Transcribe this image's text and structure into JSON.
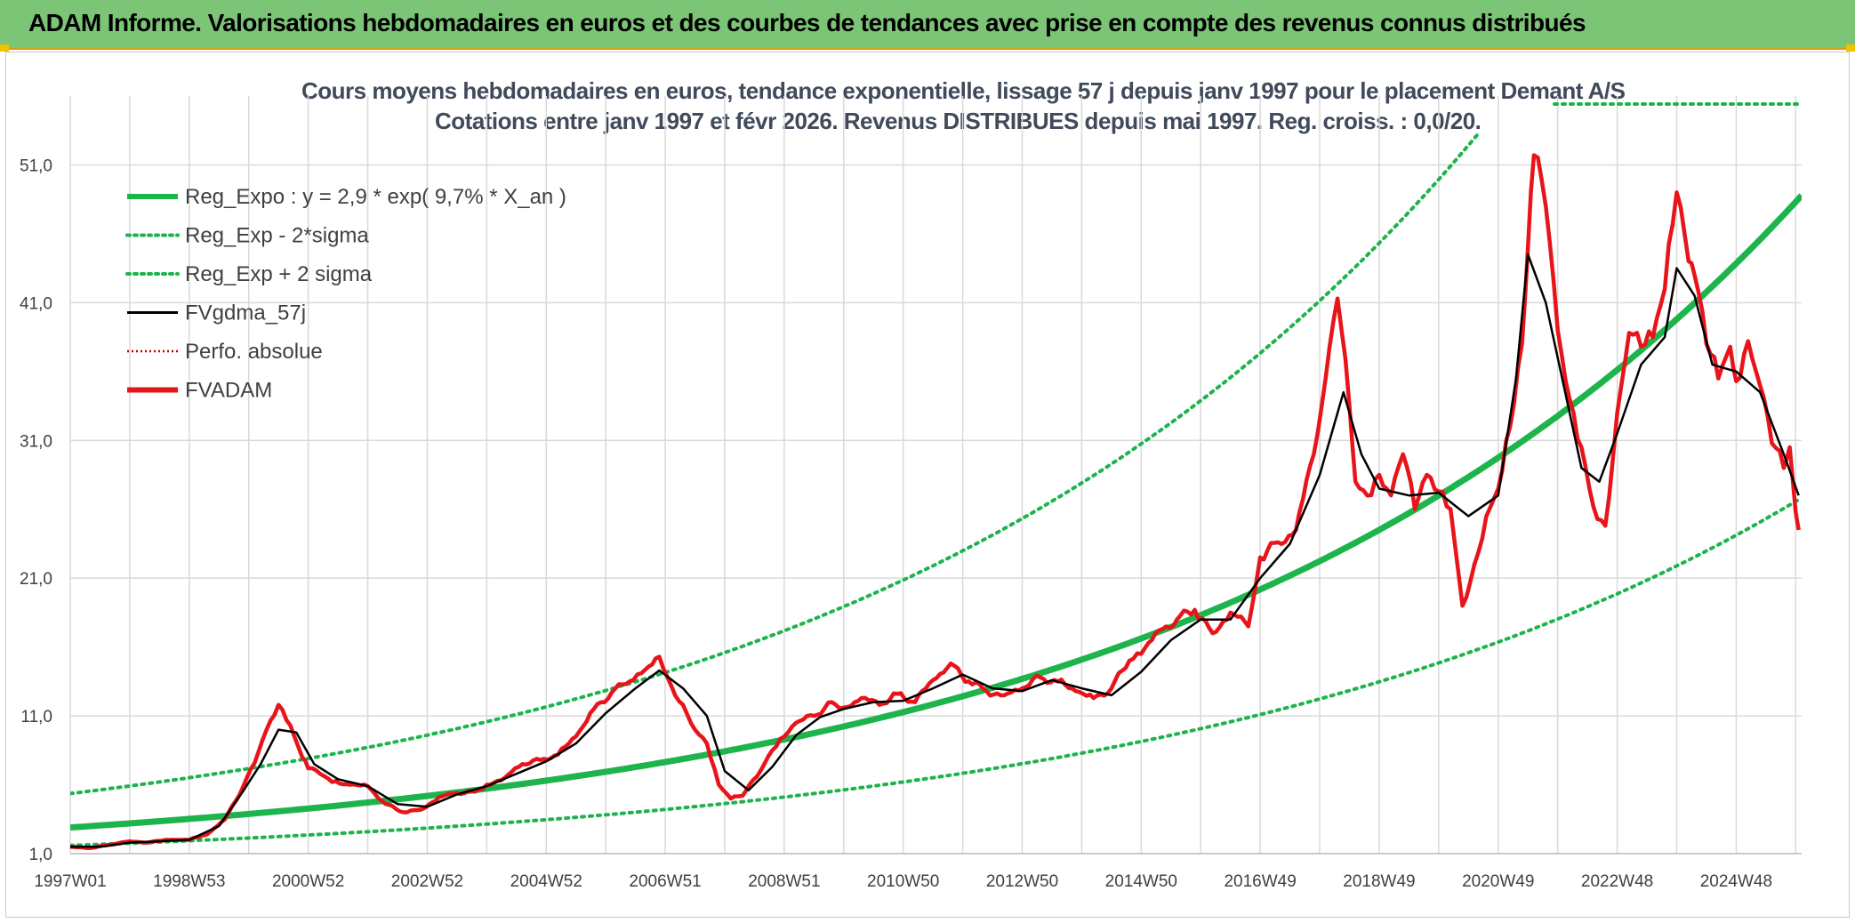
{
  "header": {
    "title": "ADAM Informe. Valorisations hebdomadaires en euros et des courbes de tendances avec prise en compte des revenus connus distribués"
  },
  "colors": {
    "header_bg": "#7cc576",
    "trend": "#1db44c",
    "band": "#1db44c",
    "gdma": "#000000",
    "price": "#e8141a",
    "perf": "#c00000",
    "grid": "#d9d9d9"
  },
  "chart_data": {
    "type": "line",
    "title": "Cours moyens hebdomadaires en euros, tendance exponentielle, lissage 57 j depuis janv 1997 pour le placement Demant A/S",
    "subtitle": "Cotations entre janv 1997 et févr 2026. Revenus DISTRIBUES depuis mai 1997. Reg. croiss. : 0,0/20.",
    "ylim": [
      1,
      56
    ],
    "yticks": [
      "1,0",
      "11,0",
      "21,0",
      "31,0",
      "41,0",
      "51,0"
    ],
    "ytick_values": [
      1,
      11,
      21,
      31,
      41,
      51
    ],
    "xlim": [
      1997.0,
      2026.1
    ],
    "xticks": [
      "1997W01",
      "1998W53",
      "2000W52",
      "2002W52",
      "2004W52",
      "2006W51",
      "2008W51",
      "2010W50",
      "2012W50",
      "2014W50",
      "2016W49",
      "2018W49",
      "2020W49",
      "2022W48",
      "2024W48"
    ],
    "xtick_values": [
      1997.0,
      1999.0,
      2001.0,
      2003.0,
      2005.0,
      2007.0,
      2009.0,
      2011.0,
      2013.0,
      2015.0,
      2017.0,
      2019.0,
      2021.0,
      2023.0,
      2025.0
    ],
    "xvgrid_values": [
      1997.0,
      1998.0,
      1999.0,
      2000.0,
      2001.0,
      2002.0,
      2003.0,
      2004.0,
      2005.0,
      2006.0,
      2007.0,
      2008.0,
      2009.0,
      2010.0,
      2011.0,
      2012.0,
      2013.0,
      2014.0,
      2015.0,
      2016.0,
      2017.0,
      2018.0,
      2019.0,
      2020.0,
      2021.0,
      2022.0,
      2023.0,
      2024.0,
      2025.0,
      2026.0
    ],
    "grid": true,
    "legend": {
      "position": "top-left",
      "entries": [
        {
          "label": "Reg_Expo : y = 2,9 * exp( 9,7% *  X_an )",
          "color": "#1db44c",
          "style": "solid-thick"
        },
        {
          "label": "Reg_Exp - 2*sigma",
          "color": "#1db44c",
          "style": "dotted"
        },
        {
          "label": "Reg_Exp + 2 sigma",
          "color": "#1db44c",
          "style": "dotted"
        },
        {
          "label": "FVgdma_57j",
          "color": "#000000",
          "style": "solid"
        },
        {
          "label": "Perfo. absolue",
          "color": "#c00000",
          "style": "dotted-thin"
        },
        {
          "label": "FVADAM",
          "color": "#e8141a",
          "style": "solid-thick"
        }
      ]
    },
    "trend": {
      "a": 2.9,
      "rate": 0.097,
      "x0": 1997.0,
      "lower_factor": 0.55,
      "upper_factor": 1.85
    },
    "series": [
      {
        "name": "FVADAM",
        "x": [
          1997.0,
          1997.3,
          1997.6,
          1998.0,
          1998.3,
          1998.6,
          1999.0,
          1999.3,
          1999.6,
          1999.9,
          2000.1,
          2000.3,
          2000.5,
          2000.7,
          2000.9,
          2001.0,
          2001.2,
          2001.4,
          2001.7,
          2002.0,
          2002.3,
          2002.6,
          2002.9,
          2003.2,
          2003.5,
          2003.8,
          2004.0,
          2004.3,
          2004.6,
          2004.9,
          2005.2,
          2005.5,
          2005.8,
          2006.1,
          2006.4,
          2006.6,
          2006.9,
          2007.1,
          2007.3,
          2007.5,
          2007.7,
          2007.9,
          2008.1,
          2008.3,
          2008.6,
          2008.8,
          2009.0,
          2009.2,
          2009.5,
          2009.8,
          2010.0,
          2010.3,
          2010.6,
          2010.9,
          2011.2,
          2011.5,
          2011.8,
          2012.1,
          2012.4,
          2012.7,
          2013.0,
          2013.3,
          2013.6,
          2013.9,
          2014.2,
          2014.5,
          2014.8,
          2015.0,
          2015.3,
          2015.6,
          2015.9,
          2016.2,
          2016.5,
          2016.8,
          2017.0,
          2017.3,
          2017.6,
          2017.9,
          2018.1,
          2018.3,
          2018.5,
          2018.6,
          2018.8,
          2019.0,
          2019.2,
          2019.4,
          2019.6,
          2019.8,
          2020.0,
          2020.2,
          2020.4,
          2020.6,
          2020.8,
          2021.0,
          2021.2,
          2021.4,
          2021.5,
          2021.6,
          2021.8,
          2022.0,
          2022.2,
          2022.4,
          2022.6,
          2022.8,
          2023.0,
          2023.2,
          2023.4,
          2023.6,
          2023.8,
          2024.0,
          2024.2,
          2024.3,
          2024.5,
          2024.7,
          2024.9,
          2025.0,
          2025.2,
          2025.4,
          2025.6,
          2025.8,
          2025.9,
          2026.0,
          2026.05
        ],
        "y": [
          1.5,
          1.4,
          1.6,
          1.9,
          1.8,
          2.0,
          2.0,
          2.4,
          3.5,
          5.8,
          7.6,
          10.0,
          11.8,
          10.3,
          8.0,
          7.2,
          6.8,
          6.2,
          6.0,
          5.9,
          4.6,
          4.0,
          4.2,
          5.1,
          5.4,
          5.5,
          6.0,
          6.5,
          7.5,
          7.8,
          8.2,
          9.5,
          11.5,
          12.7,
          13.5,
          14.1,
          15.3,
          13.2,
          11.8,
          10.0,
          9.0,
          6.0,
          5.0,
          5.2,
          7.0,
          8.5,
          9.5,
          10.5,
          11.0,
          12.0,
          11.6,
          12.3,
          11.8,
          12.6,
          12.0,
          13.6,
          14.8,
          13.5,
          12.8,
          12.5,
          13.0,
          13.8,
          13.5,
          12.8,
          12.3,
          13.0,
          15.0,
          15.5,
          17.2,
          18.0,
          18.7,
          17.0,
          18.5,
          17.5,
          22.5,
          23.6,
          24.5,
          30.0,
          35.5,
          41.3,
          33.5,
          28.0,
          27.0,
          28.5,
          27.0,
          30.0,
          26.0,
          28.5,
          27.3,
          26.0,
          19.0,
          22.0,
          25.5,
          27.5,
          32.0,
          38.0,
          45.0,
          51.7,
          48.0,
          39.0,
          34.0,
          30.5,
          26.2,
          24.8,
          33.0,
          38.8,
          37.8,
          38.5,
          42.0,
          49.0,
          44.0,
          43.0,
          38.0,
          35.5,
          37.8,
          35.3,
          38.2,
          35.0,
          30.8,
          29.0,
          30.5,
          25.8,
          24.5
        ]
      },
      {
        "name": "FVgdma_57j",
        "x": [
          1997.0,
          1997.5,
          1998.0,
          1998.5,
          1999.0,
          1999.5,
          1999.9,
          2000.2,
          2000.5,
          2000.8,
          2001.1,
          2001.5,
          2002.0,
          2002.5,
          2003.0,
          2003.5,
          2004.0,
          2004.5,
          2005.0,
          2005.5,
          2006.0,
          2006.5,
          2006.9,
          2007.3,
          2007.7,
          2008.0,
          2008.4,
          2008.8,
          2009.2,
          2009.6,
          2010.0,
          2010.5,
          2011.0,
          2011.5,
          2012.0,
          2012.5,
          2013.0,
          2013.5,
          2014.0,
          2014.5,
          2015.0,
          2015.5,
          2016.0,
          2016.5,
          2017.0,
          2017.5,
          2018.0,
          2018.4,
          2018.7,
          2019.0,
          2019.5,
          2020.0,
          2020.5,
          2021.0,
          2021.3,
          2021.5,
          2021.8,
          2022.1,
          2022.4,
          2022.7,
          2023.0,
          2023.4,
          2023.8,
          2024.0,
          2024.3,
          2024.6,
          2025.0,
          2025.4,
          2025.8,
          2026.05
        ],
        "y": [
          1.5,
          1.5,
          1.8,
          1.9,
          2.0,
          3.0,
          5.5,
          7.5,
          10.0,
          9.8,
          7.5,
          6.4,
          5.9,
          4.6,
          4.4,
          5.3,
          5.9,
          6.8,
          7.7,
          9.0,
          11.2,
          13.0,
          14.3,
          13.0,
          11.0,
          7.0,
          5.6,
          7.3,
          9.6,
          10.9,
          11.5,
          12.0,
          12.1,
          13.0,
          14.0,
          13.0,
          12.8,
          13.6,
          13.0,
          12.5,
          14.2,
          16.5,
          18.0,
          18.0,
          21.0,
          23.5,
          28.5,
          34.5,
          30.0,
          27.5,
          27.0,
          27.2,
          25.5,
          27.0,
          35.5,
          44.5,
          41.0,
          35.0,
          29.0,
          28.0,
          31.5,
          36.5,
          38.5,
          43.5,
          41.5,
          36.5,
          36.0,
          34.5,
          30.0,
          27.0
        ]
      }
    ]
  }
}
